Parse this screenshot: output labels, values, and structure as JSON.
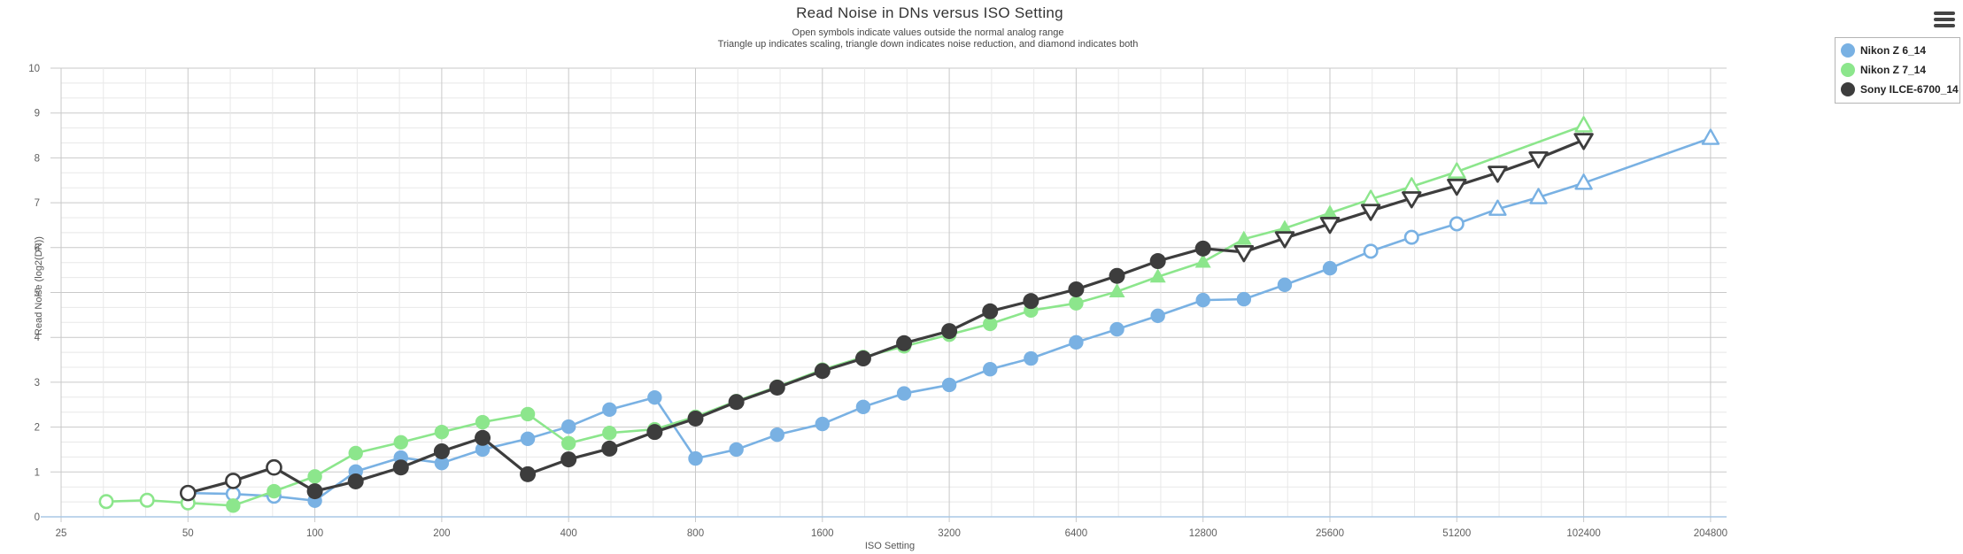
{
  "header": {
    "title": "Read Noise in DNs versus ISO Setting",
    "subtitle1": "Open symbols indicate values outside the normal analog range",
    "subtitle2": "Triangle up indicates scaling, triangle down indicates noise reduction, and diamond indicates both"
  },
  "menu": {
    "icon": "hamburger-menu-icon"
  },
  "legend": {
    "items": [
      {
        "label": "Nikon Z 6_14",
        "color": "#79b1e3"
      },
      {
        "label": "Nikon Z 7_14",
        "color": "#8ce68c"
      },
      {
        "label": "Sony ILCE-6700_14",
        "color": "#3d3d3d"
      }
    ]
  },
  "colors": {
    "grid_major": "#c9c9c9",
    "grid_minor": "#e8e8e8",
    "axis_line": "#a9c8e6",
    "tick_text": "#5f5f5f",
    "title_text": "#333333"
  },
  "chart_data": {
    "type": "line",
    "title": "Read Noise in DNs versus ISO Setting",
    "xlabel": "ISO Setting",
    "ylabel": "Read Noise (log2(DN))",
    "x_scale": "log2",
    "xlim": [
      25,
      204800
    ],
    "ylim": [
      0,
      10
    ],
    "x_ticks": [
      "25",
      "50",
      "100",
      "200",
      "400",
      "800",
      "1600",
      "3200",
      "6400",
      "12800",
      "25600",
      "51200",
      "102400",
      "204800"
    ],
    "y_ticks": [
      "0",
      "1",
      "2",
      "3",
      "4",
      "5",
      "6",
      "7",
      "8",
      "9",
      "10"
    ],
    "grid": "on",
    "legend_position": "top-right",
    "marker_meaning": {
      "open": "outside the normal analog range",
      "triangle-up": "scaling",
      "triangle-down": "noise reduction",
      "diamond": "both scaling and noise reduction"
    },
    "series": [
      {
        "name": "Nikon Z 6_14",
        "color": "#79b1e3",
        "points": [
          [
            50,
            0.53,
            "open-circle"
          ],
          [
            64,
            0.51,
            "open-circle"
          ],
          [
            80,
            0.46,
            "open-circle"
          ],
          [
            100,
            0.36,
            "circle"
          ],
          [
            125,
            1.01,
            "circle"
          ],
          [
            160,
            1.32,
            "circle"
          ],
          [
            200,
            1.2,
            "circle"
          ],
          [
            250,
            1.5,
            "circle"
          ],
          [
            320,
            1.74,
            "circle"
          ],
          [
            400,
            2.01,
            "circle"
          ],
          [
            500,
            2.39,
            "circle"
          ],
          [
            640,
            2.66,
            "circle"
          ],
          [
            800,
            1.3,
            "circle"
          ],
          [
            1000,
            1.5,
            "circle"
          ],
          [
            1250,
            1.83,
            "circle"
          ],
          [
            1600,
            2.07,
            "circle"
          ],
          [
            2000,
            2.45,
            "circle"
          ],
          [
            2500,
            2.75,
            "circle"
          ],
          [
            3200,
            2.94,
            "circle"
          ],
          [
            4000,
            3.29,
            "circle"
          ],
          [
            5000,
            3.53,
            "circle"
          ],
          [
            6400,
            3.89,
            "circle"
          ],
          [
            8000,
            4.18,
            "circle"
          ],
          [
            10000,
            4.48,
            "circle"
          ],
          [
            12800,
            4.83,
            "circle"
          ],
          [
            16000,
            4.85,
            "circle"
          ],
          [
            20000,
            5.17,
            "circle"
          ],
          [
            25600,
            5.54,
            "circle"
          ],
          [
            32000,
            5.92,
            "open-circle"
          ],
          [
            40000,
            6.23,
            "open-circle"
          ],
          [
            51200,
            6.53,
            "open-circle"
          ],
          [
            64000,
            6.86,
            "open-triangle-up"
          ],
          [
            80000,
            7.12,
            "open-triangle-up"
          ],
          [
            102400,
            7.44,
            "open-triangle-up"
          ],
          [
            204800,
            8.44,
            "open-triangle-up"
          ]
        ]
      },
      {
        "name": "Nikon Z 7_14",
        "color": "#8ce68c",
        "points": [
          [
            32,
            0.34,
            "open-circle"
          ],
          [
            40,
            0.37,
            "open-circle"
          ],
          [
            50,
            0.31,
            "open-circle"
          ],
          [
            64,
            0.25,
            "circle"
          ],
          [
            80,
            0.57,
            "circle"
          ],
          [
            100,
            0.9,
            "circle"
          ],
          [
            125,
            1.42,
            "circle"
          ],
          [
            160,
            1.66,
            "circle"
          ],
          [
            200,
            1.89,
            "circle"
          ],
          [
            250,
            2.11,
            "circle"
          ],
          [
            320,
            2.29,
            "circle"
          ],
          [
            400,
            1.64,
            "circle"
          ],
          [
            500,
            1.87,
            "circle"
          ],
          [
            640,
            1.95,
            "circle"
          ],
          [
            800,
            2.23,
            "circle"
          ],
          [
            1000,
            2.58,
            "circle"
          ],
          [
            1250,
            2.9,
            "circle"
          ],
          [
            1600,
            3.28,
            "circle"
          ],
          [
            2000,
            3.56,
            "circle"
          ],
          [
            2500,
            3.8,
            "circle"
          ],
          [
            3200,
            4.06,
            "circle"
          ],
          [
            4000,
            4.3,
            "circle"
          ],
          [
            5000,
            4.6,
            "circle"
          ],
          [
            6400,
            4.76,
            "circle"
          ],
          [
            8000,
            5.02,
            "triangle-up"
          ],
          [
            10000,
            5.35,
            "triangle-up"
          ],
          [
            12800,
            5.68,
            "triangle-up"
          ],
          [
            16000,
            6.19,
            "triangle-up"
          ],
          [
            20000,
            6.43,
            "triangle-up"
          ],
          [
            25600,
            6.77,
            "triangle-up"
          ],
          [
            32000,
            7.08,
            "open-triangle-up"
          ],
          [
            40000,
            7.36,
            "open-triangle-up"
          ],
          [
            51200,
            7.69,
            "open-triangle-up"
          ],
          [
            102400,
            8.72,
            "open-triangle-up"
          ]
        ]
      },
      {
        "name": "Sony ILCE-6700_14",
        "color": "#3d3d3d",
        "points": [
          [
            50,
            0.53,
            "open-circle"
          ],
          [
            64,
            0.8,
            "open-circle"
          ],
          [
            80,
            1.1,
            "open-circle"
          ],
          [
            100,
            0.57,
            "circle"
          ],
          [
            125,
            0.79,
            "circle"
          ],
          [
            160,
            1.1,
            "circle"
          ],
          [
            200,
            1.46,
            "circle"
          ],
          [
            250,
            1.76,
            "circle"
          ],
          [
            320,
            0.95,
            "circle"
          ],
          [
            400,
            1.28,
            "circle"
          ],
          [
            500,
            1.52,
            "circle"
          ],
          [
            640,
            1.89,
            "circle"
          ],
          [
            800,
            2.19,
            "circle"
          ],
          [
            1000,
            2.56,
            "circle"
          ],
          [
            1250,
            2.88,
            "circle"
          ],
          [
            1600,
            3.25,
            "circle"
          ],
          [
            2000,
            3.53,
            "circle"
          ],
          [
            2500,
            3.87,
            "circle"
          ],
          [
            3200,
            4.14,
            "circle"
          ],
          [
            4000,
            4.58,
            "circle"
          ],
          [
            5000,
            4.81,
            "circle"
          ],
          [
            6400,
            5.07,
            "circle"
          ],
          [
            8000,
            5.37,
            "circle"
          ],
          [
            10000,
            5.7,
            "circle"
          ],
          [
            12800,
            5.98,
            "circle"
          ],
          [
            16000,
            5.9,
            "open-triangle-down"
          ],
          [
            20000,
            6.21,
            "open-triangle-down"
          ],
          [
            25600,
            6.53,
            "open-triangle-down"
          ],
          [
            32000,
            6.82,
            "open-triangle-down"
          ],
          [
            40000,
            7.1,
            "open-triangle-down"
          ],
          [
            51200,
            7.38,
            "open-triangle-down"
          ],
          [
            64000,
            7.67,
            "open-triangle-down"
          ],
          [
            80000,
            7.99,
            "open-triangle-down"
          ],
          [
            102400,
            8.4,
            "open-triangle-down"
          ]
        ]
      }
    ]
  }
}
